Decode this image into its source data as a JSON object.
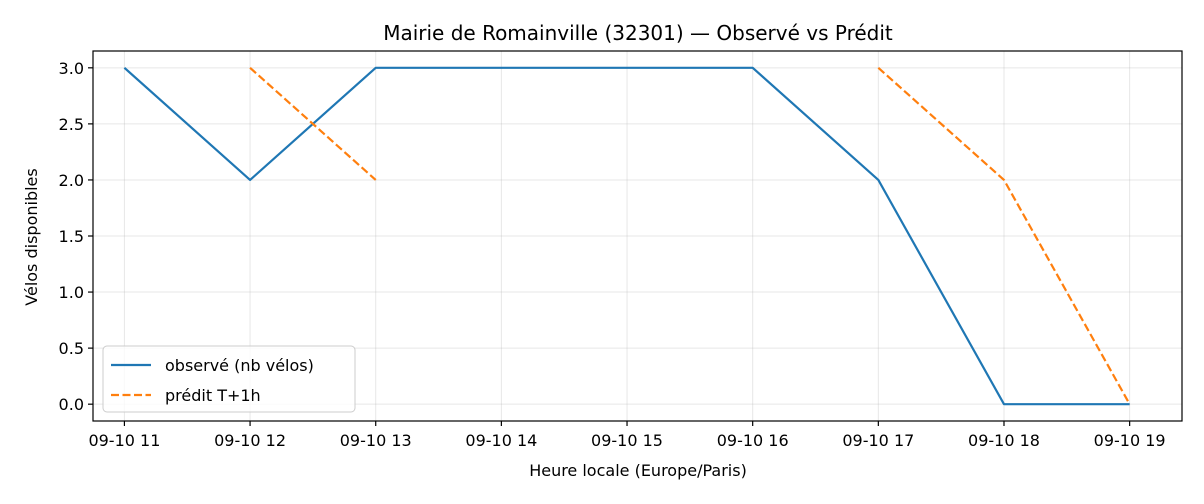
{
  "chart_data": {
    "type": "line",
    "title": "Mairie de Romainville (32301) — Observé vs Prédit",
    "xlabel": "Heure locale (Europe/Paris)",
    "ylabel": "Vélos disponibles",
    "x_ticks": [
      "09-10 11",
      "09-10 12",
      "09-10 13",
      "09-10 14",
      "09-10 15",
      "09-10 16",
      "09-10 17",
      "09-10 18",
      "09-10 19"
    ],
    "y_ticks": [
      "0.0",
      "0.5",
      "1.0",
      "1.5",
      "2.0",
      "2.5",
      "3.0"
    ],
    "xlim": [
      "09-10 10:45",
      "09-10 19:25"
    ],
    "ylim": [
      -0.15,
      3.15
    ],
    "grid": true,
    "legend_position": "lower-left",
    "series": [
      {
        "name": "observé (nb vélos)",
        "color": "#1f77b4",
        "style": "solid",
        "points": [
          {
            "x": "09-10 11",
            "y": 3
          },
          {
            "x": "09-10 12",
            "y": 2
          },
          {
            "x": "09-10 13",
            "y": 3
          },
          {
            "x": "09-10 14",
            "y": 3
          },
          {
            "x": "09-10 15",
            "y": 3
          },
          {
            "x": "09-10 16",
            "y": 3
          },
          {
            "x": "09-10 17",
            "y": 2
          },
          {
            "x": "09-10 18",
            "y": 0
          },
          {
            "x": "09-10 19",
            "y": 0
          }
        ]
      },
      {
        "name": "prédit T+1h",
        "color": "#ff7f0e",
        "style": "dashed",
        "segments": [
          [
            {
              "x": "09-10 12",
              "y": 3
            },
            {
              "x": "09-10 13",
              "y": 2
            }
          ],
          [
            {
              "x": "09-10 17",
              "y": 3
            },
            {
              "x": "09-10 18",
              "y": 2
            },
            {
              "x": "09-10 19",
              "y": 0
            }
          ]
        ]
      }
    ]
  }
}
